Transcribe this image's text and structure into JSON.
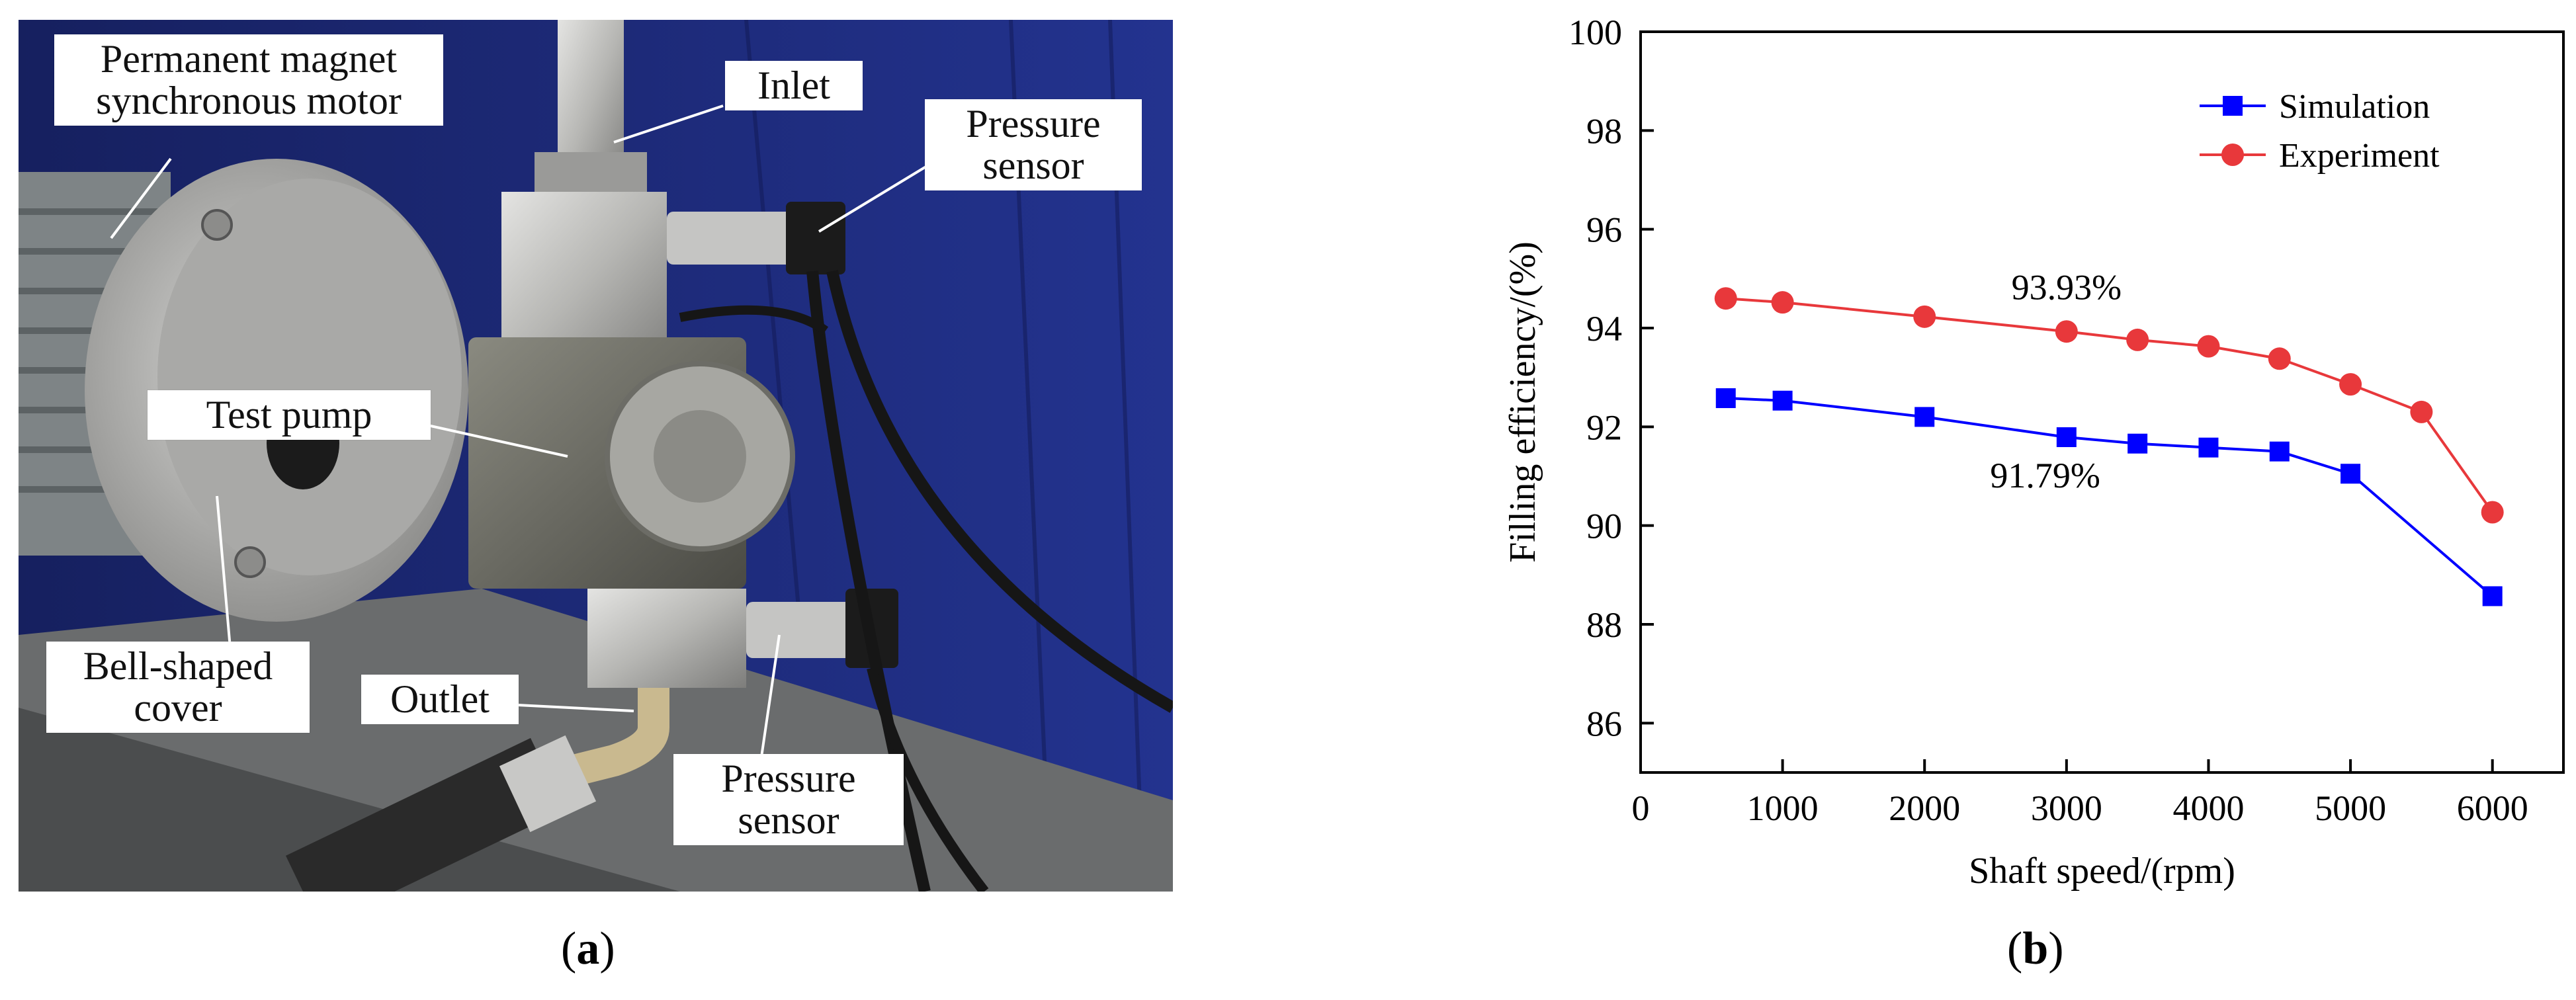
{
  "panel_a": {
    "caption_letter": "a",
    "labels": {
      "motor": "Permanent magnet\nsynchronous motor",
      "inlet": "Inlet",
      "pressure_sensor_top": "Pressure\nsensor",
      "test_pump": "Test pump",
      "bell_cover": "Bell-shaped\ncover",
      "outlet": "Outlet",
      "pressure_sensor_bottom": "Pressure\nsensor"
    },
    "colors": {
      "backdrop": "#1f2c86",
      "metal": "#b9b9b6",
      "bench": "#5c5e5f"
    }
  },
  "panel_b": {
    "caption_letter": "b"
  },
  "chart_data": {
    "type": "line",
    "title": "",
    "xlabel": "Shaft speed/(rpm)",
    "ylabel": "Filling efficiency/(%)",
    "xlim": [
      0,
      6500
    ],
    "ylim": [
      85,
      100
    ],
    "xticks": [
      0,
      1000,
      2000,
      3000,
      4000,
      5000,
      6000
    ],
    "yticks": [
      86,
      88,
      90,
      92,
      94,
      96,
      98,
      100
    ],
    "grid": false,
    "legend_position": "top-right",
    "series": [
      {
        "name": "Simulation",
        "color": "#0000ff",
        "marker": "square",
        "x": [
          600,
          1000,
          2000,
          3000,
          3500,
          4000,
          4500,
          5000,
          6000
        ],
        "y": [
          92.58,
          92.53,
          92.2,
          91.79,
          91.66,
          91.58,
          91.5,
          91.05,
          88.57
        ]
      },
      {
        "name": "Experiment",
        "color": "#e8383b",
        "marker": "circle",
        "x": [
          600,
          1000,
          2000,
          3000,
          3500,
          4000,
          4500,
          5000,
          5500,
          6000
        ],
        "y": [
          94.6,
          94.52,
          94.23,
          93.93,
          93.76,
          93.63,
          93.38,
          92.86,
          92.3,
          90.27
        ]
      }
    ],
    "annotations": [
      {
        "text": "93.93%",
        "x": 3000,
        "y": 94.58
      },
      {
        "text": "91.79%",
        "x": 2850,
        "y": 90.77
      }
    ]
  }
}
